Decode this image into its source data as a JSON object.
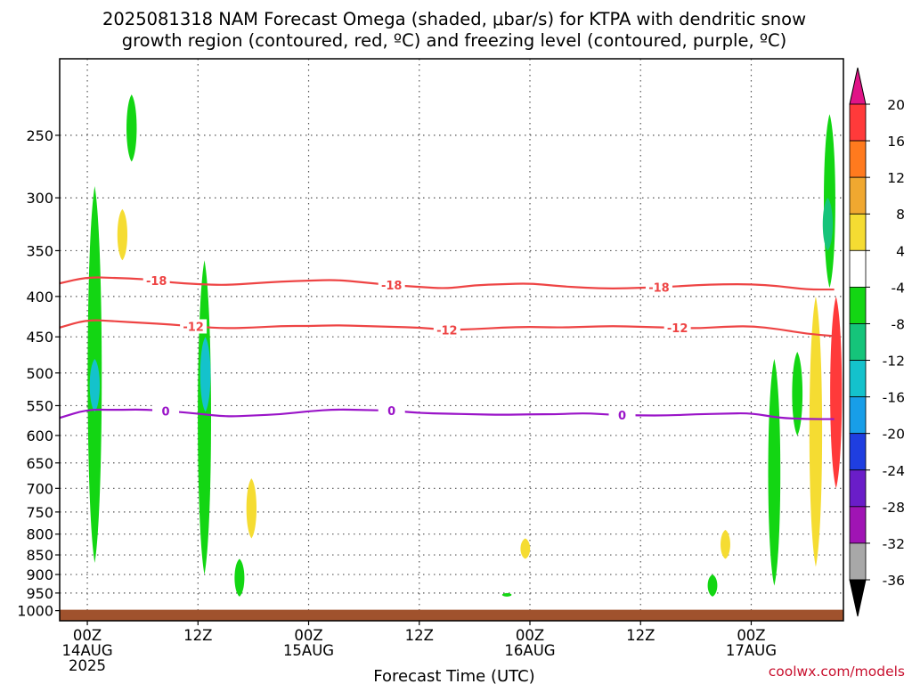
{
  "chart_data": {
    "type": "heatmap",
    "title": [
      "2025081318 NAM Forecast Omega (shaded, μbar/s) for KTPA with dendritic snow",
      "growth region (contoured, red, ºC) and freezing level (contoured, purple, ºC)"
    ],
    "xlabel": "Forecast Time (UTC)",
    "ylabel": "",
    "credit": "coolwx.com/models",
    "y_scale": "log-pressure",
    "y_range_hpa": [
      1000,
      200
    ],
    "y_ticks": [
      250,
      300,
      350,
      400,
      450,
      500,
      550,
      600,
      650,
      700,
      750,
      800,
      850,
      900,
      950,
      1000
    ],
    "x_range_hours": [
      -3,
      72
    ],
    "x_ticks": [
      {
        "hour": 0,
        "lines": [
          "00Z",
          "14AUG",
          "2025"
        ]
      },
      {
        "hour": 12,
        "lines": [
          "12Z"
        ]
      },
      {
        "hour": 24,
        "lines": [
          "00Z",
          "15AUG"
        ]
      },
      {
        "hour": 36,
        "lines": [
          "12Z"
        ]
      },
      {
        "hour": 48,
        "lines": [
          "00Z",
          "16AUG"
        ]
      },
      {
        "hour": 60,
        "lines": [
          "12Z"
        ]
      },
      {
        "hour": 72,
        "lines": [
          "00Z",
          "17AUG"
        ]
      }
    ],
    "grid": "dotted",
    "colorbar": {
      "labels": [
        "20",
        "16",
        "12",
        "8",
        "4",
        "-4",
        "-8",
        "-12",
        "-16",
        "-20",
        "-24",
        "-28",
        "-32",
        "-36"
      ],
      "colors": [
        "#ff3a3a",
        "#ff7a1e",
        "#f0a830",
        "#f5dc32",
        "#ffffff",
        "#13d613",
        "#15c47a",
        "#14c2cc",
        "#189ee8",
        "#1f3ee0",
        "#6a1dc8",
        "#a014b4",
        "#a8a8a8"
      ],
      "extend_top_color": "#e01487",
      "extend_bottom_color": "#000000"
    },
    "omega_features": [
      {
        "color": "#13d613",
        "hour": 0.8,
        "hpa_range": [
          290,
          870
        ]
      },
      {
        "color": "#14c2cc",
        "hour": 0.8,
        "hpa_range": [
          480,
          560
        ]
      },
      {
        "color": "#13d613",
        "hour": 4.8,
        "hpa_range": [
          222,
          270
        ]
      },
      {
        "color": "#f5dc32",
        "hour": 3.8,
        "hpa_range": [
          310,
          360
        ]
      },
      {
        "color": "#13d613",
        "hour": 12.7,
        "hpa_range": [
          360,
          900
        ]
      },
      {
        "color": "#14c2cc",
        "hour": 12.8,
        "hpa_range": [
          450,
          560
        ]
      },
      {
        "color": "#f5dc32",
        "hour": 17.8,
        "hpa_range": [
          680,
          810
        ]
      },
      {
        "color": "#13d613",
        "hour": 16.5,
        "hpa_range": [
          860,
          960
        ]
      },
      {
        "color": "#f5dc32",
        "hour": 47.5,
        "hpa_range": [
          810,
          860
        ]
      },
      {
        "color": "#13d613",
        "hour": 45.5,
        "hpa_range": [
          950,
          960
        ]
      },
      {
        "color": "#f5dc32",
        "hour": 69.2,
        "hpa_range": [
          790,
          860
        ]
      },
      {
        "color": "#13d613",
        "hour": 67.8,
        "hpa_range": [
          900,
          960
        ]
      },
      {
        "color": "#13d613",
        "hour": 74.5,
        "hpa_range": [
          480,
          930
        ]
      },
      {
        "color": "#13d613",
        "hour": 77.0,
        "hpa_range": [
          470,
          600
        ]
      },
      {
        "color": "#f5dc32",
        "hour": 79.0,
        "hpa_range": [
          400,
          880
        ]
      },
      {
        "color": "#13d613",
        "hour": 80.5,
        "hpa_range": [
          235,
          390
        ]
      },
      {
        "color": "#15c47a",
        "hour": 80.3,
        "hpa_range": [
          300,
          350
        ]
      },
      {
        "color": "#ff3a3a",
        "hour": 81.2,
        "hpa_range": [
          400,
          700
        ]
      }
    ],
    "series": [
      {
        "name": "-18",
        "color": "#ee4444",
        "x": [
          -3,
          0,
          3,
          6,
          9,
          12,
          15,
          18,
          21,
          24,
          27,
          30,
          33,
          36,
          39,
          42,
          45,
          48,
          51,
          54,
          57,
          60,
          63,
          66,
          69,
          72,
          75,
          78,
          81
        ],
        "y": [
          385,
          378,
          379,
          380,
          384,
          386,
          387,
          385,
          383,
          382,
          381,
          384,
          387,
          389,
          391,
          387,
          386,
          385,
          388,
          390,
          391,
          390,
          389,
          387,
          386,
          386,
          388,
          392,
          392
        ]
      },
      {
        "name": "-12",
        "color": "#ee4444",
        "x": [
          -3,
          0,
          3,
          6,
          9,
          12,
          15,
          18,
          21,
          24,
          27,
          30,
          33,
          36,
          39,
          42,
          45,
          48,
          51,
          54,
          57,
          60,
          63,
          66,
          69,
          72,
          75,
          78,
          81
        ],
        "y": [
          438,
          428,
          430,
          432,
          434,
          437,
          439,
          438,
          436,
          436,
          435,
          436,
          437,
          438,
          441,
          440,
          438,
          437,
          438,
          437,
          436,
          437,
          438,
          439,
          437,
          436,
          440,
          446,
          449
        ]
      },
      {
        "name": "0",
        "color": "#9a14c8",
        "x": [
          -3,
          0,
          3,
          6,
          9,
          12,
          15,
          18,
          21,
          24,
          27,
          30,
          33,
          36,
          39,
          42,
          45,
          48,
          51,
          54,
          57,
          60,
          63,
          66,
          69,
          72,
          75,
          78,
          81
        ],
        "y": [
          570,
          556,
          557,
          556,
          559,
          563,
          568,
          566,
          564,
          559,
          556,
          557,
          558,
          562,
          563,
          564,
          565,
          564,
          564,
          562,
          565,
          566,
          566,
          564,
          563,
          562,
          570,
          572,
          572
        ]
      }
    ],
    "contour_labels": [
      {
        "text": "-18",
        "series": "-18",
        "hour": 7.5
      },
      {
        "text": "-18",
        "series": "-18",
        "hour": 33
      },
      {
        "text": "-18",
        "series": "-18",
        "hour": 62
      },
      {
        "text": "-12",
        "series": "-12",
        "hour": 11.5
      },
      {
        "text": "-12",
        "series": "-12",
        "hour": 39
      },
      {
        "text": "-12",
        "series": "-12",
        "hour": 64
      },
      {
        "text": "0",
        "series": "0",
        "hour": 8.5
      },
      {
        "text": "0",
        "series": "0",
        "hour": 33
      },
      {
        "text": "0",
        "series": "0",
        "hour": 58
      }
    ],
    "ground": {
      "color": "#a0522d",
      "hpa_range": [
        1000,
        1030
      ]
    }
  }
}
